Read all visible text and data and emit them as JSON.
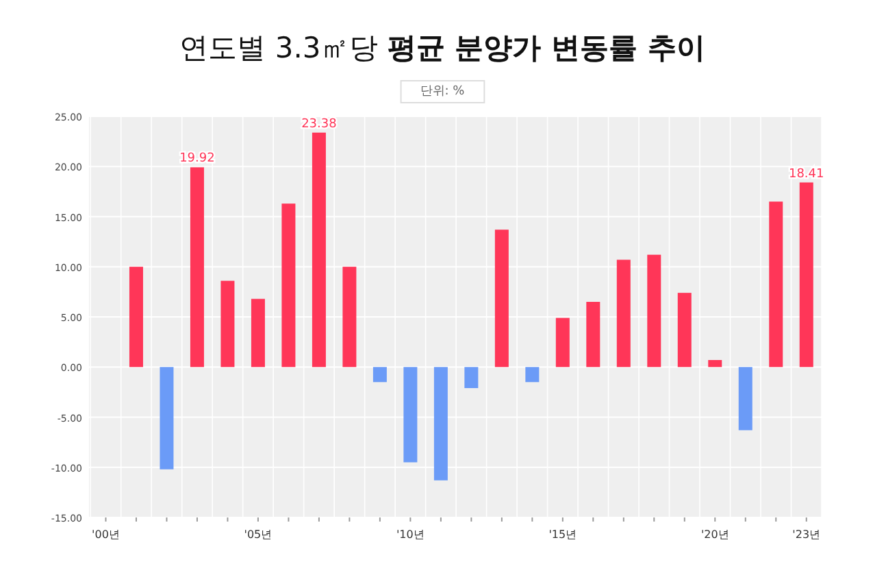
{
  "chart_data": {
    "type": "bar",
    "title": "연도별 3.3㎡당 **평균 분양가 변동률 추이**",
    "annotations": [
      "단위: %"
    ],
    "categories": [
      "'00년",
      null,
      null,
      null,
      null,
      "'05년",
      null,
      null,
      null,
      null,
      "'10년",
      null,
      null,
      null,
      null,
      "'15년",
      null,
      null,
      null,
      null,
      "'20년",
      null,
      null,
      "'23년"
    ],
    "values": [
      null,
      10.0,
      -10.2,
      19.92,
      8.6,
      6.8,
      16.3,
      23.38,
      10.0,
      -1.5,
      -9.5,
      -11.3,
      -2.1,
      13.7,
      -1.5,
      4.9,
      6.5,
      10.7,
      11.2,
      7.4,
      0.7,
      -6.3,
      16.5,
      18.41
    ],
    "colors": [
      null,
      "#ff3658",
      "#6b9bf7",
      "#ff3658",
      "#ff3658",
      "#ff3658",
      "#ff3658",
      "#ff3658",
      "#ff3658",
      "#6b9bf7",
      "#6b9bf7",
      "#6b9bf7",
      "#6b9bf7",
      "#ff3658",
      "#6b9bf7",
      "#ff3658",
      "#ff3658",
      "#ff3658",
      "#ff3658",
      "#ff3658",
      "#ff3658",
      "#6b9bf7",
      "#ff3658",
      "#ff3658"
    ],
    "value_labels": [
      null,
      null,
      null,
      "19.92",
      null,
      null,
      null,
      "23.38",
      null,
      null,
      null,
      null,
      null,
      null,
      null,
      null,
      null,
      null,
      null,
      null,
      null,
      null,
      null,
      "18.41"
    ],
    "ylim": [
      -15,
      25
    ],
    "yticks": [
      {
        "value": -15,
        "label": "-15.00"
      },
      {
        "value": -10,
        "label": "-10.00"
      },
      {
        "value": -5,
        "label": "-5.00"
      },
      {
        "value": 0,
        "label": "0.00"
      },
      {
        "value": 5,
        "label": "5.00"
      },
      {
        "value": 10,
        "label": "10.00"
      },
      {
        "value": 15,
        "label": "15.00"
      },
      {
        "value": 20,
        "label": "20.00"
      },
      {
        "value": 25,
        "label": "25.00"
      }
    ],
    "grid": true
  }
}
